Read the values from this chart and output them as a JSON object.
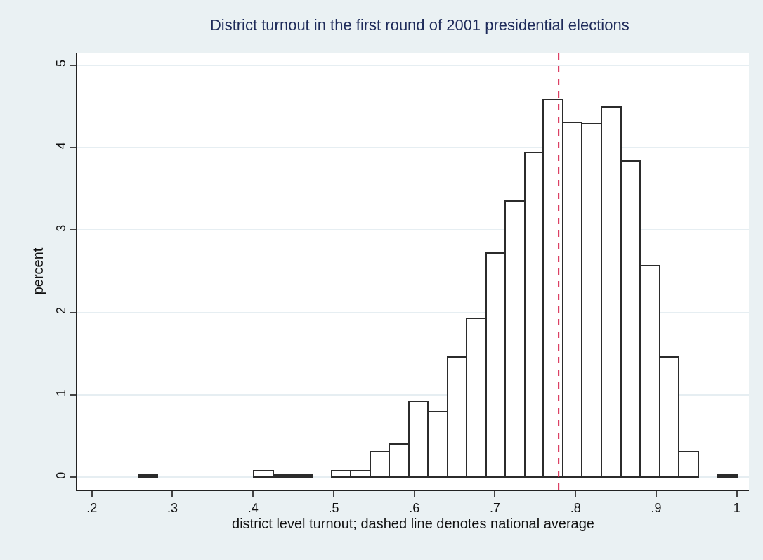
{
  "chart_data": {
    "type": "histogram",
    "title": "District turnout in the first round of 2001 presidential elections",
    "xlabel": "district level turnout; dashed line denotes national average",
    "ylabel": "percent",
    "bins": [
      0.258,
      0.281,
      0.401,
      0.425,
      0.449,
      0.473,
      0.497,
      0.521,
      0.545,
      0.569,
      0.593,
      0.617,
      0.641,
      0.665,
      0.689,
      0.713,
      0.737,
      0.76,
      0.784,
      0.808,
      0.832,
      0.856,
      0.88,
      0.904,
      0.928,
      0.952,
      0.976,
      1.0
    ],
    "values": [
      0.03,
      0,
      0.08,
      0.03,
      0.03,
      0,
      0.08,
      0.08,
      0.31,
      0.4,
      0.92,
      0.8,
      1.46,
      1.93,
      2.72,
      3.35,
      3.94,
      4.58,
      4.31,
      4.29,
      4.49,
      3.84,
      2.57,
      1.46,
      0.31,
      0,
      0.03
    ],
    "color": "#ffffff",
    "xlim": [
      0.182,
      1.015
    ],
    "xticks": [
      {
        "value": 0.2,
        "label": ".2"
      },
      {
        "value": 0.3,
        "label": ".3"
      },
      {
        "value": 0.4,
        "label": ".4"
      },
      {
        "value": 0.5,
        "label": ".5"
      },
      {
        "value": 0.6,
        "label": ".6"
      },
      {
        "value": 0.7,
        "label": ".7"
      },
      {
        "value": 0.8,
        "label": ".8"
      },
      {
        "value": 0.9,
        "label": ".9"
      },
      1
    ],
    "ylim": [
      -0.15,
      5.15
    ],
    "yticks": [
      0,
      1,
      2,
      3,
      4,
      5
    ],
    "grid": "y",
    "legend": false,
    "ref_lines": [
      {
        "axis": "x",
        "value": 0.779,
        "color": "#d6204a",
        "line_style": "dashed"
      }
    ]
  }
}
